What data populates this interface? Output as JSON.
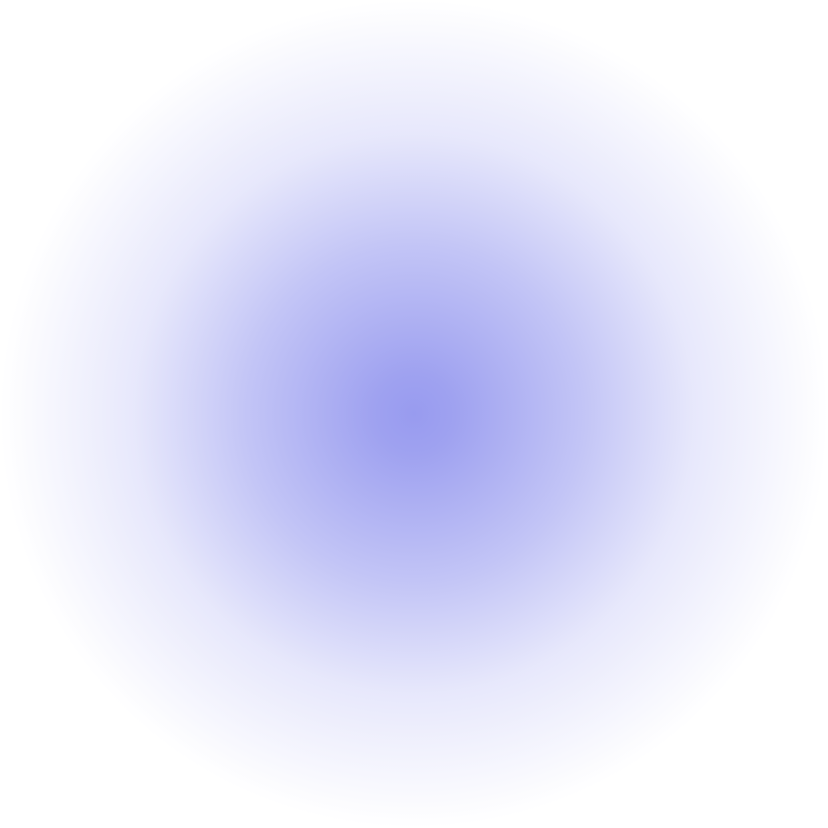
{
  "background": {
    "base_color": "#ffffff",
    "glow_center_color": "#989bef",
    "glow_mid_color": "#c3c5f6",
    "glow_edge_color": "#ffffff"
  }
}
